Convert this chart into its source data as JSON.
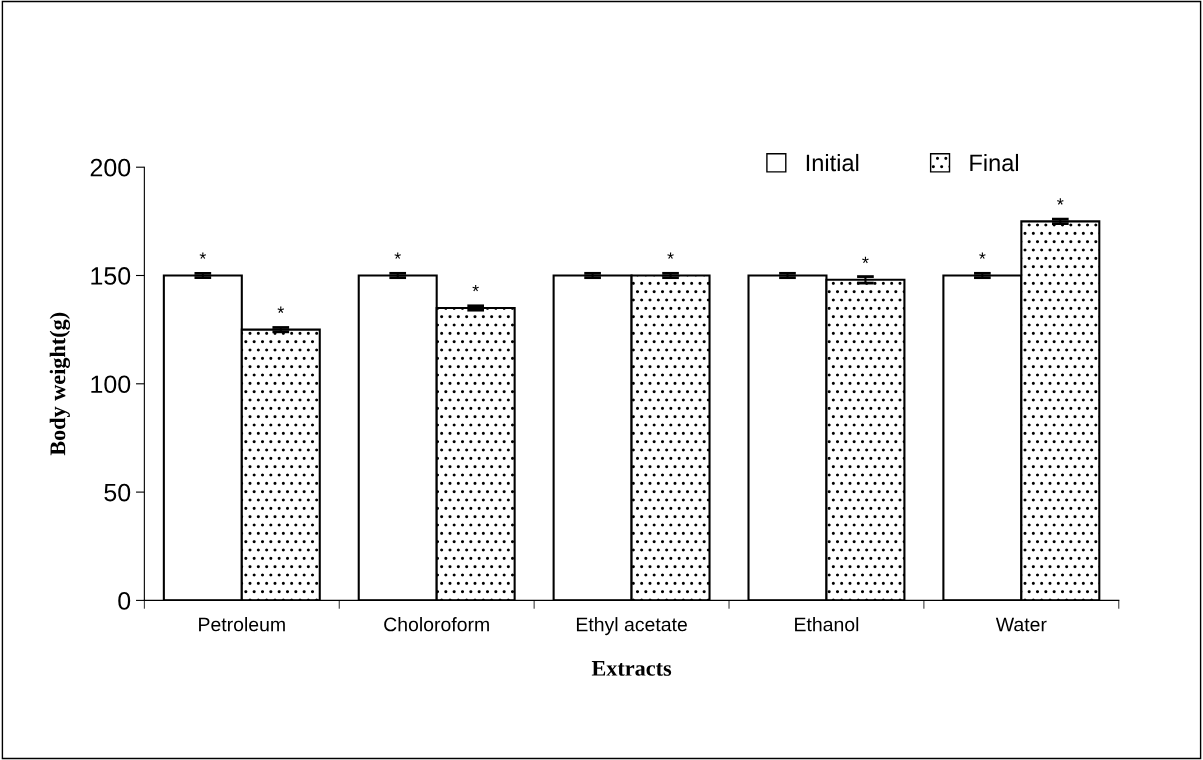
{
  "chart_data": {
    "type": "bar",
    "xlabel": "Extracts",
    "ylabel": "Body weight(g)",
    "categories": [
      "Petroleum",
      "Choloroform",
      "Ethyl acetate",
      "Ethanol",
      "Water"
    ],
    "series": [
      {
        "name": "Initial",
        "color": "#ffffff",
        "values": [
          150,
          150,
          150,
          150,
          150
        ],
        "errors": [
          1,
          1,
          1,
          1,
          1
        ]
      },
      {
        "name": "Final",
        "color": "#000000",
        "values": [
          125,
          135,
          150,
          148,
          175
        ],
        "errors": [
          1,
          1,
          1,
          1.5,
          1
        ]
      }
    ],
    "ylim": [
      0,
      200
    ],
    "yticks": [
      0,
      50,
      100,
      150,
      200
    ],
    "grid": false,
    "legend": "top right",
    "annotations": [
      {
        "text": "*",
        "x": "Petroleum",
        "y": 150
      },
      {
        "text": "*",
        "x": "Petroleum",
        "y": 125
      },
      {
        "text": "*",
        "x": "Choloroform",
        "y": 135
      },
      {
        "text": "*",
        "x": "Choloroform",
        "y": 150
      },
      {
        "text": "*",
        "x": "Ethyl acetate",
        "y": 150
      },
      {
        "text": "*",
        "x": "Ethanol",
        "y": 148
      },
      {
        "text": "*",
        "x": "Water",
        "y": 150
      },
      {
        "text": "*",
        "x": "Water",
        "y": 175
      }
    ]
  }
}
